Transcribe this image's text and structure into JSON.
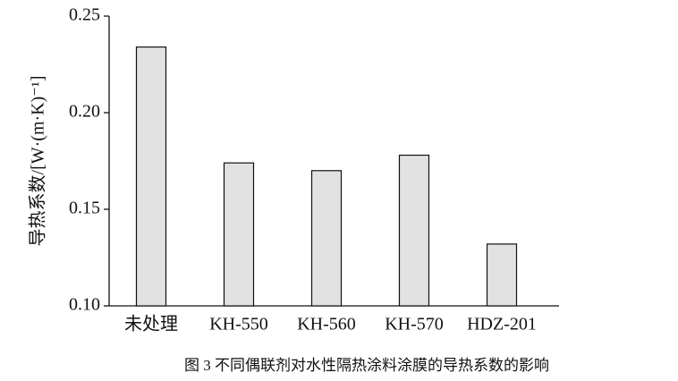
{
  "chart_data": {
    "type": "bar",
    "y_label": "导热系数/[W·(m·K)⁻¹]",
    "caption": "图 3  不同偶联剂对水性隔热涂料涂膜的导热系数的影响",
    "categories": [
      "未处理",
      "KH-550",
      "KH-560",
      "KH-570",
      "HDZ-201"
    ],
    "values": [
      0.234,
      0.174,
      0.17,
      0.178,
      0.132
    ],
    "color": "#e2e2e2",
    "ylim": [
      0.1,
      0.25
    ],
    "yticks": [
      {
        "value": 0.1,
        "label": "0.10"
      },
      0.15,
      {
        "value": 0.2,
        "label": "0.20"
      },
      0.25
    ]
  }
}
